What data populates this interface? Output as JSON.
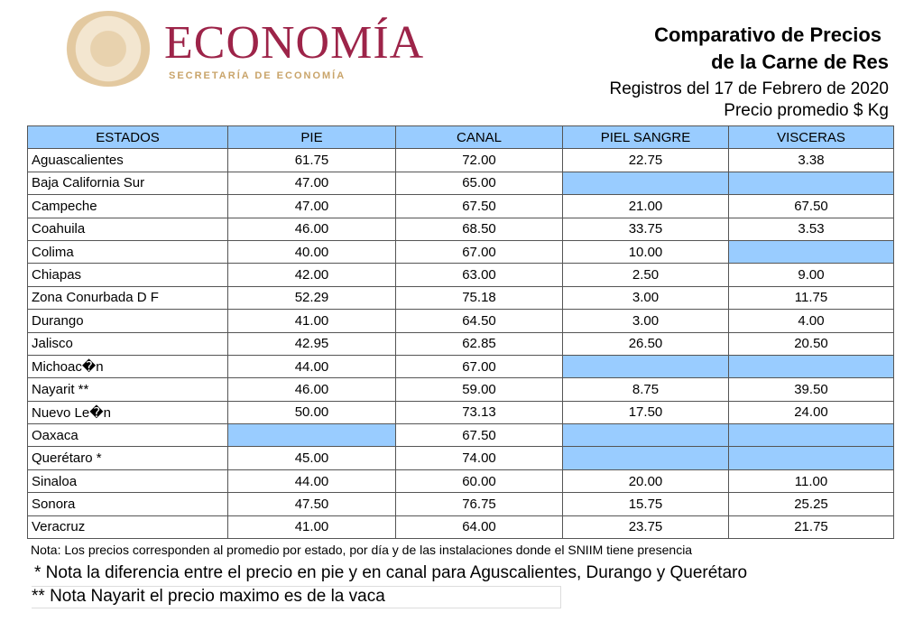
{
  "header": {
    "logo_text": "ECONOMÍA",
    "logo_subtitle": "SECRETARÍA DE ECONOMÍA",
    "title_line1": "Comparativo de Precios",
    "title_line2": "de la Carne de Res",
    "date_line": "Registros del 17  de Febrero de 2020",
    "unit_line": "Precio promedio $ Kg"
  },
  "colors": {
    "brand": "#9d2449",
    "gold": "#c9a46a",
    "header_fill": "#99ccff"
  },
  "table": {
    "columns": [
      "ESTADOS",
      "PIE",
      "CANAL",
      "PIEL SANGRE",
      "VISCERAS"
    ],
    "rows": [
      [
        " Aguascalientes",
        "61.75",
        "72.00",
        "22.75",
        "3.38"
      ],
      [
        "Baja California Sur",
        "47.00",
        "65.00",
        "",
        ""
      ],
      [
        "Campeche",
        "47.00",
        "67.50",
        "21.00",
        "67.50"
      ],
      [
        "Coahuila",
        "46.00",
        "68.50",
        "33.75",
        "3.53"
      ],
      [
        "Colima",
        "40.00",
        "67.00",
        "10.00",
        ""
      ],
      [
        "Chiapas",
        "42.00",
        "63.00",
        "2.50",
        "9.00"
      ],
      [
        "Zona Conurbada D F",
        "52.29",
        "75.18",
        "3.00",
        "11.75"
      ],
      [
        " Durango",
        "41.00",
        "64.50",
        "3.00",
        "4.00"
      ],
      [
        "Jalisco",
        "42.95",
        "62.85",
        "26.50",
        "20.50"
      ],
      [
        " Michoac�n",
        "44.00",
        "67.00",
        "",
        ""
      ],
      [
        " Nayarit **",
        "46.00",
        "59.00",
        "8.75",
        "39.50"
      ],
      [
        "Nuevo Le�n",
        "50.00",
        "73.13",
        "17.50",
        "24.00"
      ],
      [
        "Oaxaca",
        "",
        "67.50",
        "",
        ""
      ],
      [
        "Querétaro *",
        "45.00",
        "74.00",
        "",
        ""
      ],
      [
        " Sinaloa",
        "44.00",
        "60.00",
        "20.00",
        "11.00"
      ],
      [
        "Sonora",
        "47.50",
        "76.75",
        "15.75",
        "25.25"
      ],
      [
        "Veracruz",
        "41.00",
        "64.00",
        "23.75",
        "21.75"
      ]
    ]
  },
  "notes": {
    "note1": "Nota: Los precios corresponden al promedio por estado, por día y de las instalaciones donde el SNIIM tiene presencia",
    "note2": "* Nota la diferencia entre el precio en pie y en canal para Aguscalientes, Durango y Querétaro",
    "note3": "** Nota Nayarit el precio maximo es de la vaca"
  }
}
